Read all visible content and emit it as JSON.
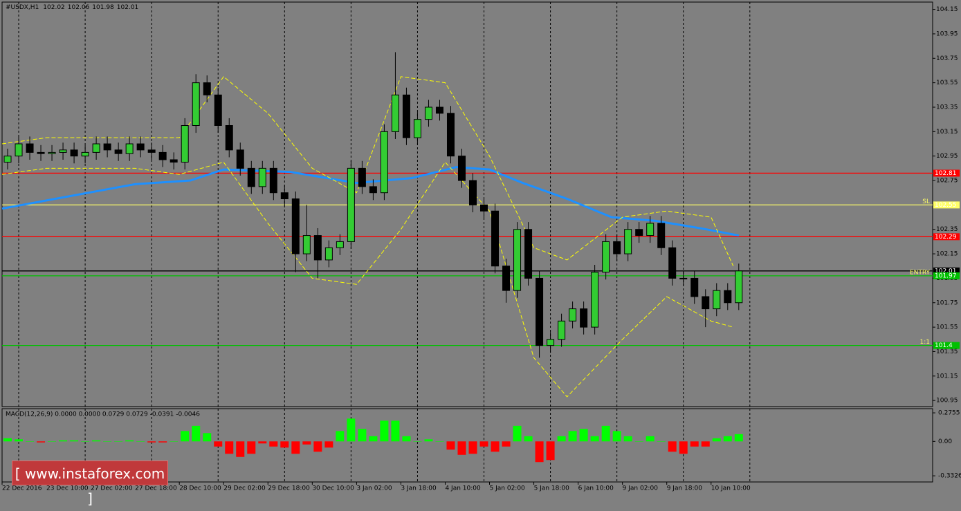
{
  "chart_data": {
    "type": "candlestick",
    "title": "#USDX,H1",
    "header_values": [
      102.02,
      102.06,
      101.98,
      102.01
    ],
    "open": [
      102.9,
      102.95,
      103.05,
      102.98,
      102.97,
      102.98,
      103.0,
      102.95,
      102.98,
      103.05,
      103.0,
      102.97,
      103.05,
      103.0,
      102.98,
      102.92,
      102.9,
      103.2,
      103.55,
      103.45,
      103.2,
      103.0,
      102.85,
      102.7,
      102.85,
      102.65,
      102.6,
      102.15,
      102.3,
      102.1,
      102.2,
      102.25,
      102.85,
      102.7,
      102.65,
      103.15,
      103.45,
      103.1,
      103.25,
      103.35,
      103.3,
      102.95,
      102.75,
      102.55,
      102.5,
      102.05,
      101.85,
      102.35,
      101.95,
      101.4,
      101.45,
      101.6,
      101.7,
      101.55,
      102.0,
      102.25,
      102.15,
      102.35,
      102.3,
      102.4,
      102.2,
      101.95,
      101.95,
      101.8,
      101.7,
      101.85,
      101.75
    ],
    "high": [
      103.01,
      103.11,
      103.11,
      103.04,
      103.04,
      103.06,
      103.06,
      103.04,
      103.11,
      103.11,
      103.06,
      103.11,
      103.11,
      103.06,
      103.04,
      102.98,
      103.26,
      103.62,
      103.61,
      103.51,
      103.26,
      103.06,
      102.91,
      102.91,
      102.91,
      102.71,
      102.66,
      102.55,
      102.36,
      102.26,
      102.31,
      102.91,
      102.91,
      102.76,
      103.21,
      103.8,
      103.51,
      103.31,
      103.41,
      103.41,
      103.36,
      103.01,
      102.81,
      102.61,
      102.56,
      102.11,
      102.41,
      102.41,
      102.01,
      101.51,
      101.66,
      101.76,
      101.76,
      102.06,
      102.31,
      102.31,
      102.41,
      102.41,
      102.46,
      102.46,
      102.26,
      102.01,
      102.01,
      101.86,
      101.91,
      101.91,
      102.07
    ],
    "low": [
      102.84,
      102.89,
      102.92,
      102.91,
      102.91,
      102.92,
      102.89,
      102.89,
      102.92,
      102.94,
      102.91,
      102.91,
      102.94,
      102.92,
      102.86,
      102.84,
      102.84,
      103.14,
      103.39,
      103.14,
      102.94,
      102.79,
      102.64,
      102.64,
      102.59,
      102.54,
      102.0,
      102.09,
      101.95,
      102.04,
      102.14,
      102.19,
      102.64,
      102.59,
      102.59,
      103.09,
      103.04,
      103.04,
      103.19,
      103.24,
      102.89,
      102.69,
      102.49,
      102.44,
      101.99,
      101.75,
      101.79,
      101.89,
      101.3,
      101.34,
      101.39,
      101.54,
      101.49,
      101.49,
      101.94,
      102.09,
      102.09,
      102.24,
      102.24,
      102.14,
      101.89,
      101.89,
      101.74,
      101.55,
      101.64,
      101.69,
      101.69
    ],
    "close": [
      102.95,
      103.05,
      102.98,
      102.97,
      102.98,
      103.0,
      102.95,
      102.98,
      103.05,
      103.0,
      102.97,
      103.05,
      103.0,
      102.98,
      102.92,
      102.9,
      103.2,
      103.55,
      103.45,
      103.2,
      103.0,
      102.85,
      102.7,
      102.85,
      102.65,
      102.6,
      102.15,
      102.3,
      102.1,
      102.2,
      102.25,
      102.85,
      102.7,
      102.65,
      103.15,
      103.45,
      103.1,
      103.25,
      103.35,
      103.3,
      102.95,
      102.75,
      102.55,
      102.5,
      102.05,
      101.85,
      102.35,
      101.95,
      101.4,
      101.45,
      101.6,
      101.7,
      101.55,
      102.0,
      102.25,
      102.15,
      102.35,
      102.3,
      102.4,
      102.2,
      101.95,
      101.95,
      101.8,
      101.7,
      101.85,
      101.75,
      102.01
    ],
    "up_color": "#33cc33",
    "down_color": "#000000",
    "series": [
      {
        "color": "#1e90ff",
        "width": 3,
        "x": [
          0,
          6,
          12,
          17,
          20,
          26,
          32,
          37,
          41,
          44,
          47,
          51,
          55,
          59,
          63,
          66.5
        ],
        "values": [
          102.52,
          102.62,
          102.72,
          102.75,
          102.84,
          102.82,
          102.73,
          102.77,
          102.86,
          102.84,
          102.73,
          102.6,
          102.45,
          102.42,
          102.36,
          102.3
        ]
      },
      {
        "color": "#ffff00",
        "dash": true,
        "width": 1,
        "x": [
          0,
          4,
          8,
          12,
          16,
          20,
          24,
          28,
          32,
          36,
          40,
          44,
          48,
          51,
          56,
          60,
          64,
          66
        ],
        "values": [
          103.05,
          103.1,
          103.1,
          103.1,
          103.1,
          103.6,
          103.3,
          102.85,
          102.65,
          103.6,
          103.55,
          102.95,
          102.2,
          102.1,
          102.45,
          102.5,
          102.45,
          102.05
        ]
      },
      {
        "color": "#ffff00",
        "dash": true,
        "width": 1,
        "x": [
          0,
          4,
          8,
          12,
          16,
          20,
          24,
          28,
          32,
          36,
          40,
          44,
          48,
          51,
          56,
          60,
          64,
          66
        ],
        "values": [
          102.8,
          102.85,
          102.85,
          102.85,
          102.8,
          102.9,
          102.4,
          101.95,
          101.9,
          102.35,
          102.9,
          102.5,
          101.3,
          100.98,
          101.45,
          101.8,
          101.6,
          101.55
        ]
      }
    ],
    "levels": [
      {
        "value": 102.81,
        "color": "#ff0000"
      },
      {
        "value": 102.29,
        "color": "#ff0000"
      },
      {
        "value": 102.01,
        "color": "#000000"
      },
      {
        "value": 101.97,
        "color": "#00c000",
        "label": "ENTRY"
      },
      {
        "value": 101.4,
        "color": "#00c000",
        "label": "1:1"
      },
      {
        "value": 102.55,
        "color": "#ffff66",
        "label": "SL"
      }
    ],
    "xlim": [
      0,
      84
    ],
    "ylim": [
      100.9,
      104.21
    ],
    "yticks": [
      104.15,
      103.95,
      103.75,
      103.55,
      103.35,
      103.15,
      102.95,
      102.75,
      102.55,
      102.35,
      102.15,
      101.95,
      101.75,
      101.55,
      101.35,
      101.15,
      100.95
    ],
    "xgrid": [
      1.5,
      7.5,
      13.5,
      19.5,
      25.5,
      31.5,
      37.5,
      43.5,
      49.5,
      55.5,
      61.5,
      67.5
    ],
    "xticks": [
      {
        "value": 0,
        "label": "22 Dec 2016"
      },
      {
        "value": 4,
        "label": "23 Dec 10:00"
      },
      {
        "value": 8,
        "label": "27 Dec 02:00"
      },
      {
        "value": 12,
        "label": "27 Dec 18:00"
      },
      {
        "value": 16,
        "label": "28 Dec 10:00"
      },
      {
        "value": 20,
        "label": "29 Dec 02:00"
      },
      {
        "value": 24,
        "label": "29 Dec 18:00"
      },
      {
        "value": 28,
        "label": "30 Dec 10:00"
      },
      {
        "value": 32,
        "label": "3 Jan 02:00"
      },
      {
        "value": 36,
        "label": "3 Jan 18:00"
      },
      {
        "value": 40,
        "label": "4 Jan 10:00"
      },
      {
        "value": 44,
        "label": "5 Jan 02:00"
      },
      {
        "value": 48,
        "label": "5 Jan 18:00"
      },
      {
        "value": 52,
        "label": "6 Jan 10:00"
      },
      {
        "value": 56,
        "label": "9 Jan 02:00"
      },
      {
        "value": 60,
        "label": "9 Jan 18:00"
      },
      {
        "value": 64,
        "label": "10 Jan 10:00"
      }
    ],
    "macd": {
      "title": "MACD(12,26,9) 0.0000 0.0000 0.0729 0.0729 -0.0391 -0.0046",
      "values": [
        0.03,
        0.02,
        0.0,
        -0.01,
        0.0,
        0.01,
        0.01,
        0.0,
        0.01,
        0.0,
        0.0,
        0.01,
        0.0,
        -0.01,
        -0.01,
        0.0,
        0.1,
        0.15,
        0.08,
        -0.05,
        -0.12,
        -0.15,
        -0.12,
        -0.02,
        -0.05,
        -0.06,
        -0.12,
        -0.03,
        -0.1,
        -0.06,
        0.1,
        0.22,
        0.12,
        0.05,
        0.2,
        0.2,
        0.05,
        0.0,
        0.02,
        0.0,
        -0.08,
        -0.13,
        -0.12,
        -0.05,
        -0.1,
        -0.05,
        0.15,
        0.05,
        -0.2,
        -0.18,
        0.05,
        0.1,
        0.12,
        0.05,
        0.15,
        0.1,
        0.05,
        0.0,
        0.05,
        0.0,
        -0.1,
        -0.12,
        -0.05,
        -0.05,
        0.03,
        0.05,
        0.07
      ],
      "up_color": "#00ff00",
      "down_color": "#ff0000",
      "ylim": [
        -0.392,
        0.316
      ],
      "yticks": [
        0.2755,
        {
          "value": 0,
          "label": "0.00"
        },
        -0.3326
      ]
    }
  },
  "watermark": "[ www.instaforex.com ]"
}
